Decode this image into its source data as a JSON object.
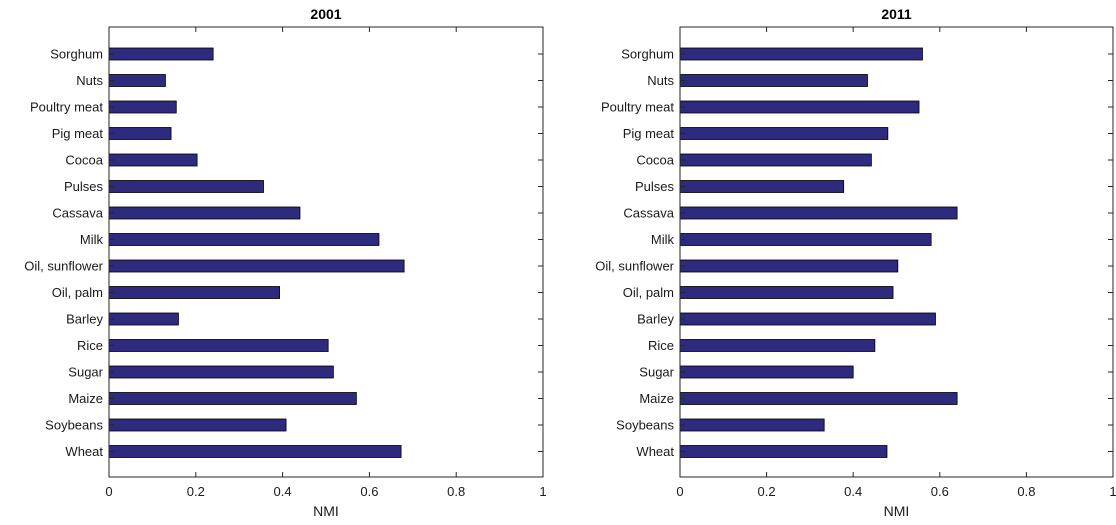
{
  "chart_data": [
    {
      "type": "bar",
      "orientation": "horizontal",
      "title": "2001",
      "xlabel": "NMI",
      "ylabel": "",
      "xlim": [
        0,
        1
      ],
      "xticks": [
        "0",
        "0.2",
        "0.4",
        "0.6",
        "0.8",
        "1"
      ],
      "categories": [
        "Sorghum",
        "Nuts",
        "Poultry meat",
        "Pig meat",
        "Cocoa",
        "Pulses",
        "Cassava",
        "Milk",
        "Oil, sunflower",
        "Oil, palm",
        "Barley",
        "Rice",
        "Sugar",
        "Maize",
        "Soybeans",
        "Wheat"
      ],
      "values": [
        0.24,
        0.13,
        0.155,
        0.143,
        0.203,
        0.356,
        0.44,
        0.622,
        0.68,
        0.393,
        0.16,
        0.505,
        0.517,
        0.57,
        0.408,
        0.673
      ],
      "bar_color": "#2e2a7e",
      "grid": false
    },
    {
      "type": "bar",
      "orientation": "horizontal",
      "title": "2011",
      "xlabel": "NMI",
      "ylabel": "",
      "xlim": [
        0,
        1
      ],
      "xticks": [
        "0",
        "0.2",
        "0.4",
        "0.6",
        "0.8",
        "1"
      ],
      "categories": [
        "Sorghum",
        "Nuts",
        "Poultry meat",
        "Pig meat",
        "Cocoa",
        "Pulses",
        "Cassava",
        "Milk",
        "Oil, sunflower",
        "Oil, palm",
        "Barley",
        "Rice",
        "Sugar",
        "Maize",
        "Soybeans",
        "Wheat"
      ],
      "values": [
        0.56,
        0.433,
        0.552,
        0.48,
        0.442,
        0.378,
        0.64,
        0.58,
        0.503,
        0.492,
        0.59,
        0.45,
        0.4,
        0.64,
        0.333,
        0.478
      ],
      "bar_color": "#2e2a7e",
      "grid": false
    }
  ]
}
